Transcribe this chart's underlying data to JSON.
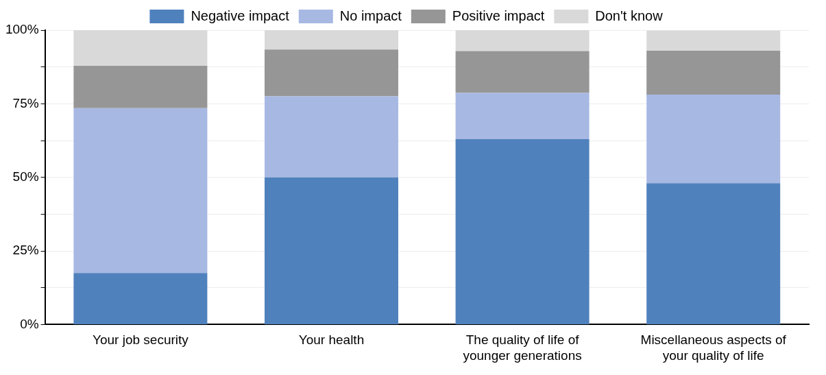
{
  "chart_data": {
    "type": "bar",
    "stacked": true,
    "categories": [
      "Your job security",
      "Your health",
      "The quality of life of younger generations",
      "Miscellaneous aspects of your quality of life"
    ],
    "series": [
      {
        "name": "Negative impact",
        "color": "#4f81bd",
        "values": [
          17.5,
          50,
          63,
          48
        ]
      },
      {
        "name": "No impact",
        "color": "#a7b8e3",
        "values": [
          56,
          27.5,
          15.7,
          30.1
        ]
      },
      {
        "name": "Positive impact",
        "color": "#969696",
        "values": [
          14.4,
          15.9,
          14.2,
          14.9
        ]
      },
      {
        "name": "Don't know",
        "color": "#d9d9d9",
        "values": [
          12.1,
          6.6,
          7.1,
          6.9
        ]
      }
    ],
    "ylim": [
      0,
      100
    ],
    "yticks": [
      {
        "value": 0,
        "label": "0%"
      },
      {
        "value": 12.5,
        "label": null
      },
      {
        "value": 25,
        "label": "25%"
      },
      {
        "value": 37.5,
        "label": null
      },
      {
        "value": 50,
        "label": "50%"
      },
      {
        "value": 62.5,
        "label": null
      },
      {
        "value": 75,
        "label": "75%"
      },
      {
        "value": 87.5,
        "label": null
      },
      {
        "value": 100,
        "label": "100%"
      }
    ],
    "grid": "y",
    "legend": "top"
  }
}
